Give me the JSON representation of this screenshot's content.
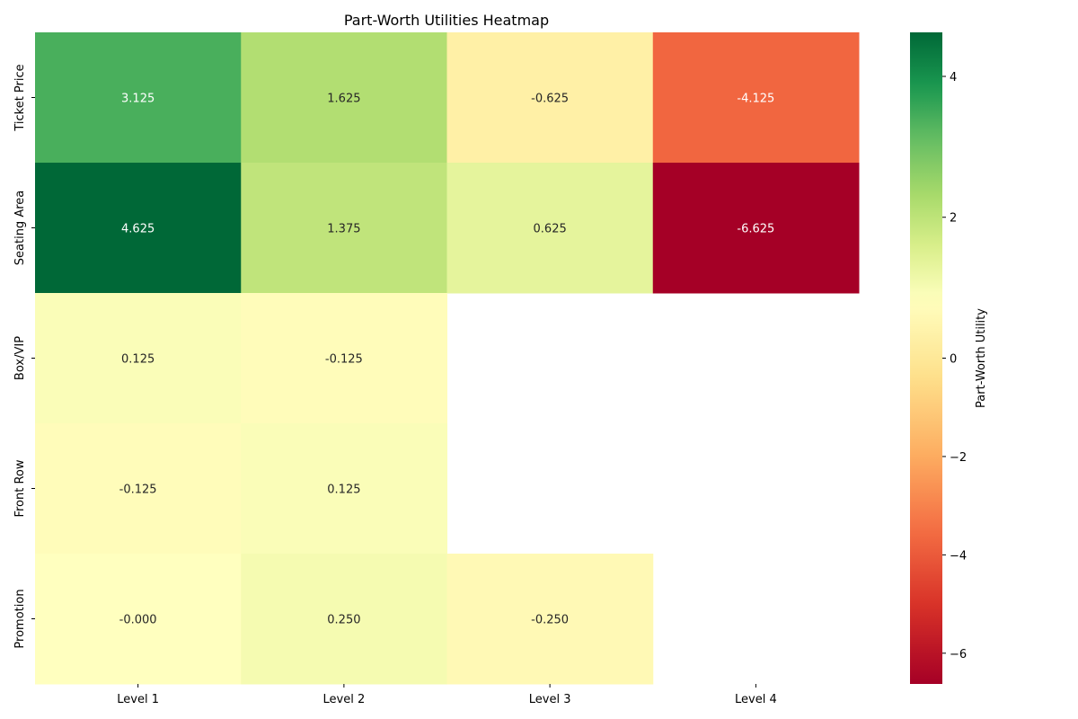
{
  "chart_data": {
    "type": "heatmap",
    "title": "Part-Worth Utilities Heatmap",
    "rows": [
      "Ticket Price",
      "Seating Area",
      "Box/VIP",
      "Front Row",
      "Promotion"
    ],
    "columns": [
      "Level 1",
      "Level 2",
      "Level 3",
      "Level 4"
    ],
    "values": [
      [
        3.125,
        1.625,
        -0.625,
        -4.125
      ],
      [
        4.625,
        1.375,
        0.625,
        -6.625
      ],
      [
        0.125,
        -0.125,
        null,
        null
      ],
      [
        -0.125,
        0.125,
        null,
        null
      ],
      [
        -0.0,
        0.25,
        -0.25,
        null
      ]
    ],
    "cell_labels": [
      [
        "3.125",
        "1.625",
        "-0.625",
        "-4.125"
      ],
      [
        "4.625",
        "1.375",
        "0.625",
        "-6.625"
      ],
      [
        "0.125",
        "-0.125",
        "",
        ""
      ],
      [
        "-0.125",
        "0.125",
        "",
        ""
      ],
      [
        "-0.000",
        "0.250",
        "-0.250",
        ""
      ]
    ],
    "colormap": "RdYlGn",
    "color_range": [
      -6.625,
      4.625
    ],
    "colorbar": {
      "label": "Part-Worth Utility",
      "ticks": [
        4,
        2,
        0,
        -2,
        -4,
        -6
      ],
      "tick_labels": [
        "4",
        "2",
        "0",
        "−2",
        "−4",
        "−6"
      ]
    }
  }
}
